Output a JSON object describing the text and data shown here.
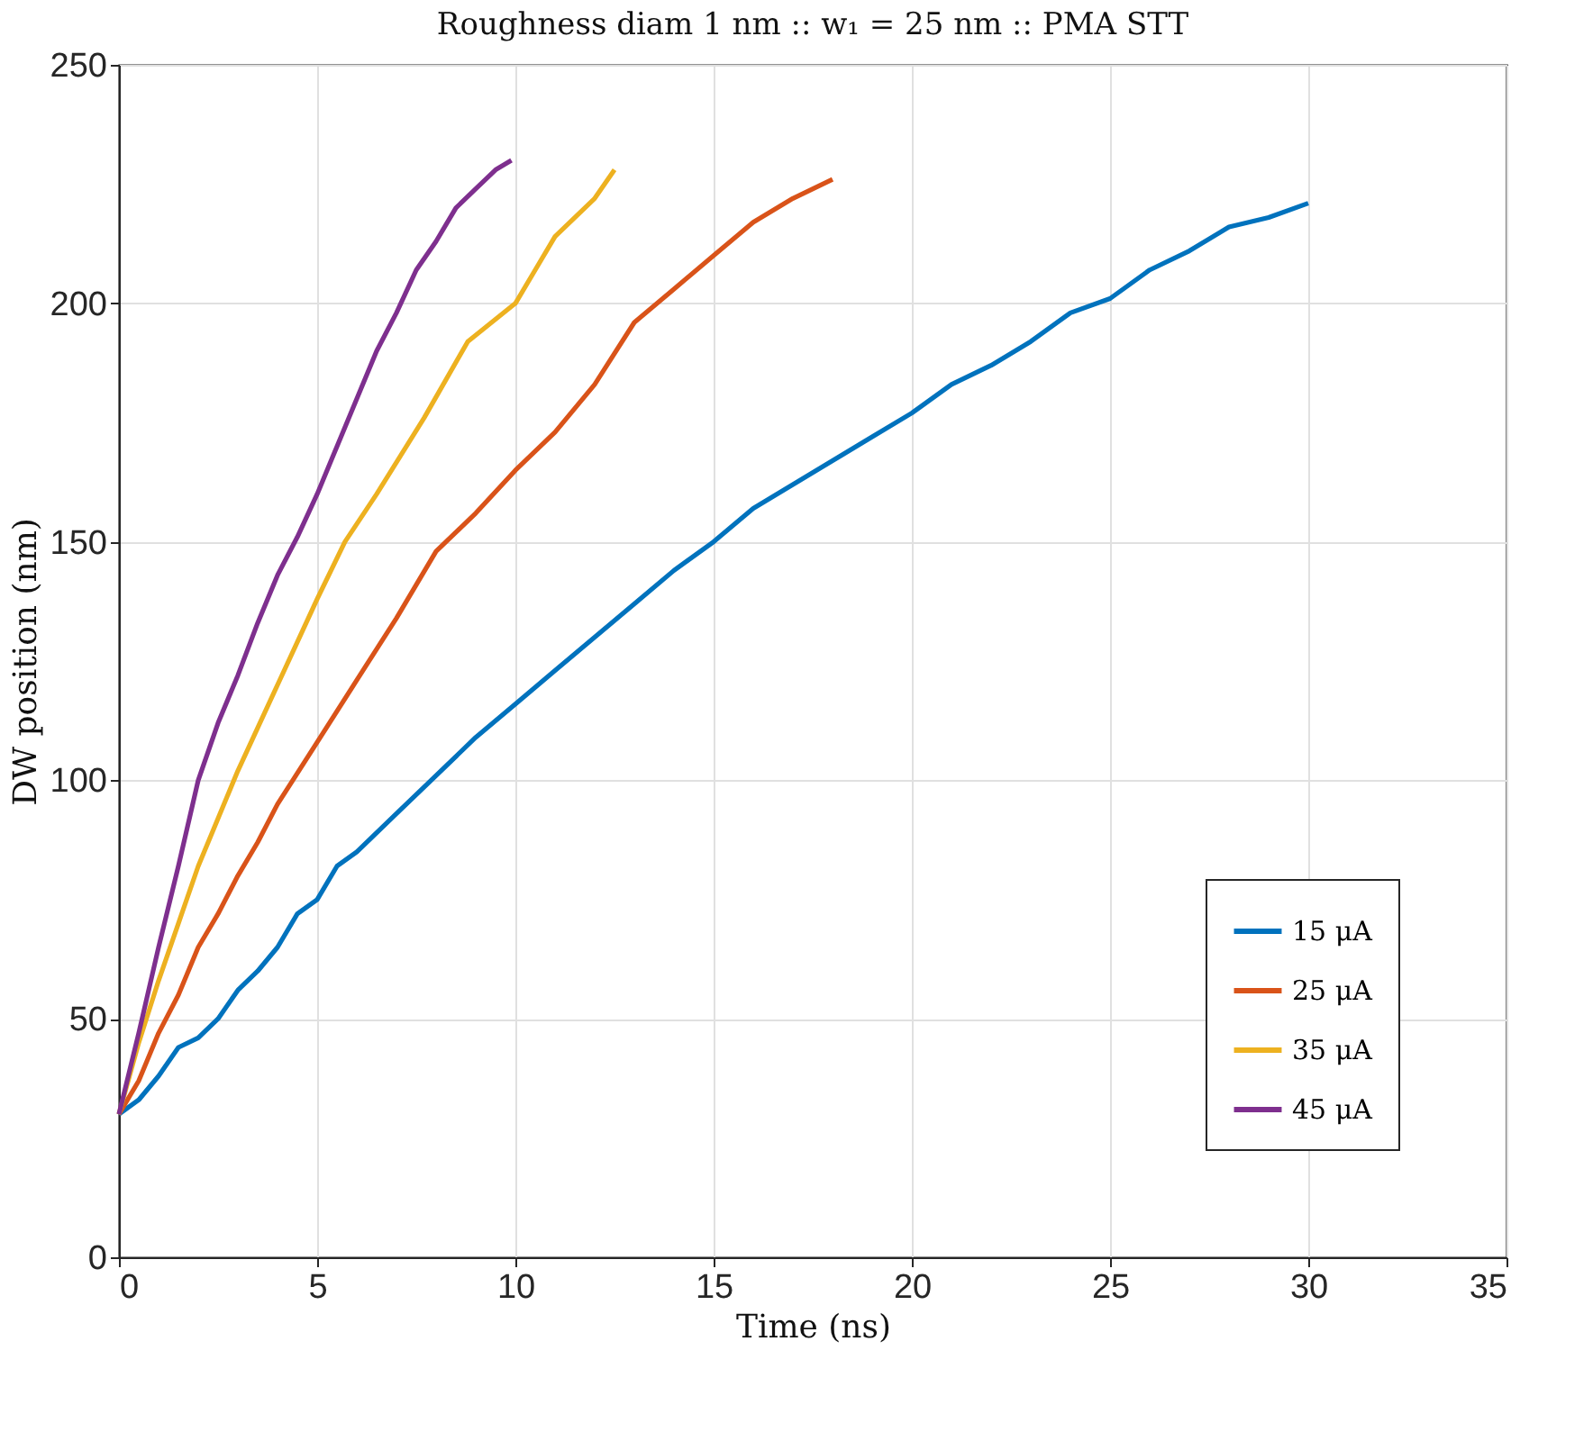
{
  "chart_data": {
    "type": "line",
    "title": "Roughness diam 1 nm :: w₁ = 25 nm :: PMA STT",
    "xlabel": "Time (ns)",
    "ylabel": "DW position (nm)",
    "xlim": [
      0,
      35
    ],
    "xticks": [
      0,
      5,
      10,
      15,
      20,
      25,
      30,
      35
    ],
    "ylim": [
      0,
      250
    ],
    "yticks": [
      0,
      50,
      100,
      150,
      200,
      250
    ],
    "grid": true,
    "legend": "bottom right",
    "line_style": "solid",
    "series": [
      {
        "name": "15 μA",
        "color": "#0072bd",
        "x": [
          0,
          0.5,
          1,
          1.5,
          2,
          2.5,
          3,
          3.5,
          4,
          4.5,
          5,
          5.5,
          6,
          7,
          8,
          9,
          10,
          11,
          12,
          13,
          14,
          15,
          16,
          17,
          18,
          19,
          20,
          21,
          22,
          23,
          24,
          25,
          26,
          27,
          28,
          29,
          30
        ],
        "values": [
          30,
          33,
          38,
          44,
          46,
          50,
          56,
          60,
          65,
          72,
          75,
          82,
          85,
          93,
          101,
          109,
          116,
          123,
          130,
          137,
          144,
          150,
          157,
          162,
          167,
          172,
          177,
          183,
          187,
          192,
          198,
          201,
          207,
          211,
          216,
          218,
          221
        ]
      },
      {
        "name": "25 μA",
        "color": "#d95319",
        "x": [
          0,
          0.5,
          1,
          1.5,
          2,
          2.5,
          3,
          3.5,
          4,
          5,
          6,
          7,
          8,
          9,
          10,
          11,
          12,
          13,
          14,
          15,
          16,
          17,
          18
        ],
        "values": [
          30,
          37,
          47,
          55,
          65,
          72,
          80,
          87,
          95,
          108,
          121,
          134,
          148,
          156,
          165,
          173,
          183,
          196,
          203,
          210,
          217,
          222,
          226
        ]
      },
      {
        "name": "35 μA",
        "color": "#edb120",
        "x": [
          0,
          0.5,
          1,
          1.5,
          2,
          2.5,
          3,
          3.5,
          4,
          4.5,
          5,
          5.7,
          6.5,
          7.7,
          8.8,
          10,
          10.5,
          11,
          12,
          12.5
        ],
        "values": [
          30,
          45,
          58,
          70,
          82,
          92,
          102,
          111,
          120,
          129,
          138,
          150,
          160,
          176,
          192,
          200,
          207,
          214,
          222,
          228
        ]
      },
      {
        "name": "45 μA",
        "color": "#7e2f8e",
        "x": [
          0,
          0.5,
          1,
          1.5,
          2,
          2.5,
          3,
          3.5,
          4,
          4.5,
          5,
          5.5,
          6,
          6.5,
          7,
          7.5,
          8,
          8.5,
          9,
          9.5,
          9.9
        ],
        "values": [
          30,
          47,
          65,
          82,
          100,
          112,
          122,
          133,
          143,
          151,
          160,
          170,
          180,
          190,
          198,
          207,
          213,
          220,
          224,
          228,
          230
        ]
      }
    ]
  }
}
